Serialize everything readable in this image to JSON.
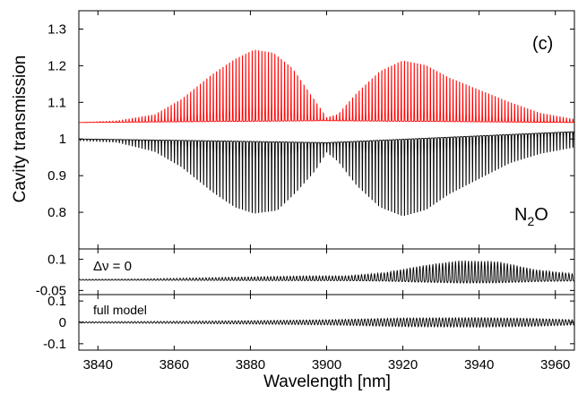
{
  "chart_data": [
    {
      "type": "line",
      "panel": "main",
      "annotation": "(c)",
      "species_label": {
        "main": "N",
        "sub": "2",
        "tail": "O"
      },
      "xlabel": "Wavelength [nm]",
      "ylabel": "Cavity transmission",
      "xlim": [
        3835,
        3965
      ],
      "ylim": [
        0.7,
        1.35
      ],
      "x_ticks": [
        3840,
        3860,
        3880,
        3900,
        3920,
        3940,
        3960
      ],
      "y_ticks": [
        0.8,
        0.9,
        1,
        1.1,
        1.2,
        1.3
      ],
      "y_tick_labels": [
        "0.8",
        "0.9",
        "1",
        "1.1",
        "1.2",
        "1.3"
      ],
      "series": [
        {
          "color": "#ff0000",
          "style": "comb of narrow cavity resonances above baseline",
          "baseline": [
            [
              3835,
              1.045
            ],
            [
              3900,
              1.05
            ],
            [
              3965,
              1.045
            ]
          ],
          "envelope": [
            [
              3835,
              1.045
            ],
            [
              3845,
              1.05
            ],
            [
              3855,
              1.07
            ],
            [
              3862,
              1.12
            ],
            [
              3870,
              1.2
            ],
            [
              3876,
              1.25
            ],
            [
              3881,
              1.28
            ],
            [
              3886,
              1.27
            ],
            [
              3891,
              1.22
            ],
            [
              3896,
              1.13
            ],
            [
              3900,
              1.06
            ],
            [
              3903,
              1.07
            ],
            [
              3908,
              1.14
            ],
            [
              3914,
              1.21
            ],
            [
              3920,
              1.245
            ],
            [
              3926,
              1.23
            ],
            [
              3932,
              1.19
            ],
            [
              3940,
              1.15
            ],
            [
              3948,
              1.11
            ],
            [
              3956,
              1.075
            ],
            [
              3965,
              1.055
            ]
          ],
          "line_spacing_nm": 0.85
        },
        {
          "color": "#000000",
          "style": "comb of narrow absorption dips below baseline",
          "baseline": [
            [
              3835,
              1.0
            ],
            [
              3870,
              0.995
            ],
            [
              3900,
              0.99
            ],
            [
              3965,
              1.02
            ]
          ],
          "envelope": [
            [
              3835,
              0.995
            ],
            [
              3845,
              0.99
            ],
            [
              3855,
              0.96
            ],
            [
              3862,
              0.91
            ],
            [
              3870,
              0.83
            ],
            [
              3876,
              0.78
            ],
            [
              3881,
              0.76
            ],
            [
              3887,
              0.77
            ],
            [
              3892,
              0.83
            ],
            [
              3897,
              0.9
            ],
            [
              3900,
              0.96
            ],
            [
              3903,
              0.93
            ],
            [
              3908,
              0.85
            ],
            [
              3914,
              0.78
            ],
            [
              3920,
              0.75
            ],
            [
              3926,
              0.77
            ],
            [
              3932,
              0.82
            ],
            [
              3940,
              0.87
            ],
            [
              3948,
              0.92
            ],
            [
              3956,
              0.95
            ],
            [
              3965,
              0.97
            ]
          ],
          "line_spacing_nm": 0.85
        }
      ]
    },
    {
      "type": "line",
      "panel": "residual",
      "label": "Δν = 0",
      "xlim": [
        3835,
        3965
      ],
      "ylim": [
        -0.07,
        0.15
      ],
      "y_ticks": [
        0.1,
        -0.05
      ],
      "y_tick_labels": [
        "0.1",
        "-0.05"
      ],
      "series": [
        {
          "color": "#000000",
          "baseline": 0,
          "amplitude": [
            [
              3835,
              0.004
            ],
            [
              3850,
              0.005
            ],
            [
              3870,
              0.012
            ],
            [
              3895,
              0.02
            ],
            [
              3905,
              0.02
            ],
            [
              3915,
              0.035
            ],
            [
              3925,
              0.07
            ],
            [
              3935,
              0.095
            ],
            [
              3945,
              0.09
            ],
            [
              3955,
              0.05
            ],
            [
              3965,
              0.03
            ]
          ]
        }
      ]
    },
    {
      "type": "line",
      "panel": "residual",
      "label": "full model",
      "xlim": [
        3835,
        3965
      ],
      "ylim": [
        -0.13,
        0.13
      ],
      "y_ticks": [
        0.1,
        0,
        -0.1
      ],
      "y_tick_labels": [
        "0.1",
        "0",
        "-0.1"
      ],
      "series": [
        {
          "color": "#000000",
          "baseline": 0,
          "amplitude": [
            [
              3835,
              0.003
            ],
            [
              3860,
              0.005
            ],
            [
              3880,
              0.008
            ],
            [
              3900,
              0.012
            ],
            [
              3920,
              0.02
            ],
            [
              3940,
              0.022
            ],
            [
              3955,
              0.018
            ],
            [
              3965,
              0.012
            ]
          ]
        }
      ]
    }
  ]
}
